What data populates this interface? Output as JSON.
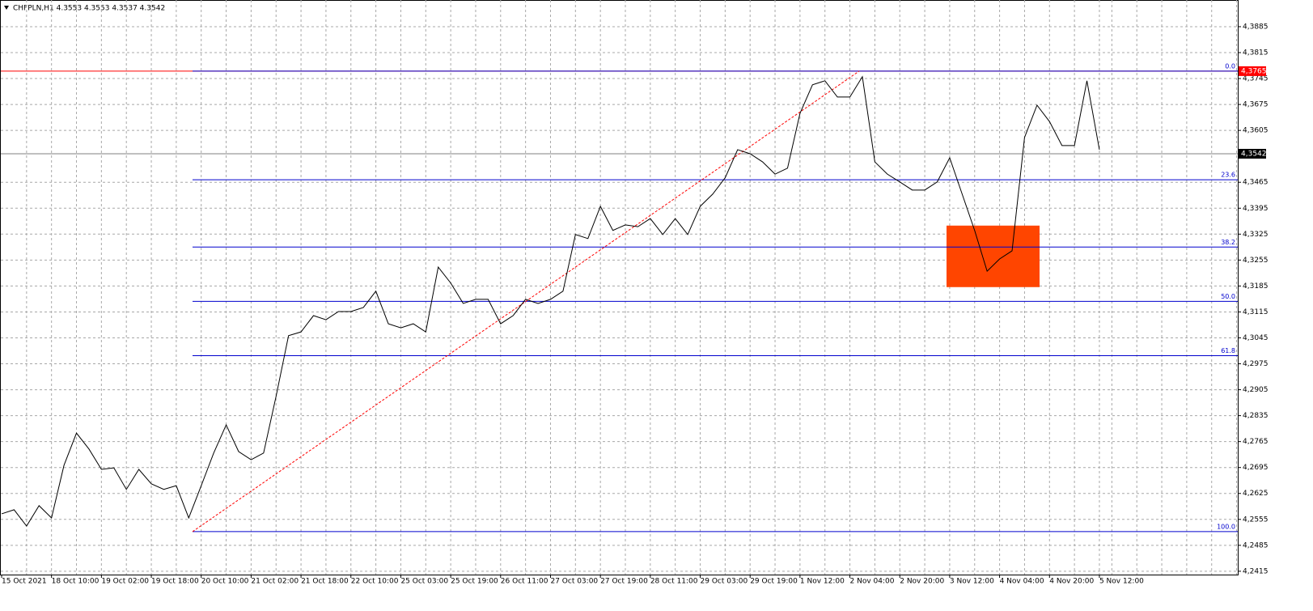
{
  "chart_data": {
    "type": "line",
    "title": "CHFPLN,H1  4.3553 4.3553 4.3537 4.3542",
    "categories": [
      "15 Oct 2021",
      null,
      null,
      null,
      "18 Oct 10:00",
      null,
      null,
      null,
      "19 Oct 02:00",
      null,
      null,
      null,
      "19 Oct 18:00",
      null,
      null,
      null,
      "20 Oct 10:00",
      null,
      null,
      null,
      "21 Oct 02:00",
      null,
      null,
      null,
      "21 Oct 18:00",
      null,
      null,
      null,
      "22 Oct 10:00",
      null,
      null,
      null,
      "25 Oct 03:00",
      null,
      null,
      null,
      "25 Oct 19:00",
      null,
      null,
      null,
      "26 Oct 11:00",
      null,
      null,
      null,
      "27 Oct 03:00",
      null,
      null,
      null,
      "27 Oct 19:00",
      null,
      null,
      null,
      "28 Oct 11:00",
      null,
      null,
      null,
      "29 Oct 03:00",
      null,
      null,
      null,
      "29 Oct 19:00",
      null,
      null,
      null,
      "1 Nov 12:00",
      null,
      null,
      null,
      "2 Nov 04:00",
      null,
      null,
      null,
      "2 Nov 20:00",
      null,
      null,
      null,
      "3 Nov 12:00",
      null,
      null,
      null,
      "4 Nov 04:00",
      null,
      null,
      null,
      "4 Nov 20:00",
      null,
      null,
      null,
      "5 Nov 12:00"
    ],
    "series": [
      {
        "color": "#000000",
        "values": [
          4.257,
          4.2581,
          4.2537,
          4.2592,
          4.2559,
          4.2701,
          4.2788,
          4.2745,
          4.269,
          4.2694,
          4.2636,
          4.269,
          4.2651,
          4.2636,
          4.2646,
          4.2559,
          4.2646,
          4.2734,
          4.281,
          4.2738,
          4.2716,
          4.2734,
          4.2887,
          4.3051,
          4.3061,
          4.3105,
          4.3094,
          4.3116,
          4.3116,
          4.3127,
          4.3171,
          4.3083,
          4.3072,
          4.3083,
          4.3061,
          4.3236,
          4.3193,
          4.3138,
          4.3149,
          4.3149,
          4.3083,
          4.3105,
          4.3149,
          4.3138,
          4.3149,
          4.3171,
          4.3324,
          4.3313,
          4.34,
          4.3335,
          4.335,
          4.3345,
          4.3367,
          4.3324,
          4.3367,
          4.3324,
          4.34,
          4.3433,
          4.3477,
          4.3553,
          4.3542,
          4.352,
          4.3487,
          4.3503,
          4.3651,
          4.3728,
          4.3739,
          4.3695,
          4.3695,
          4.375,
          4.352,
          4.3487,
          4.3466,
          4.3444,
          4.3444,
          4.3466,
          4.3531,
          4.3433,
          4.3335,
          4.3225,
          4.3258,
          4.328,
          4.3586,
          4.3673,
          4.3629,
          4.3564,
          4.3564,
          4.3739,
          4.3553
        ]
      }
    ],
    "ylim": [
      4.2406,
      4.3957
    ],
    "yticks": [
      {
        "value": 4.2415,
        "label": "4,2415"
      },
      {
        "value": 4.2485,
        "label": "4,2485"
      },
      {
        "value": 4.2555,
        "label": "4,2555"
      },
      {
        "value": 4.2625,
        "label": "4,2625"
      },
      {
        "value": 4.2695,
        "label": "4,2695"
      },
      {
        "value": 4.2765,
        "label": "4,2765"
      },
      {
        "value": 4.2835,
        "label": "4,2835"
      },
      {
        "value": 4.2905,
        "label": "4,2905"
      },
      {
        "value": 4.2975,
        "label": "4,2975"
      },
      {
        "value": 4.3045,
        "label": "4,3045"
      },
      {
        "value": 4.3115,
        "label": "4,3115"
      },
      {
        "value": 4.3185,
        "label": "4,3185"
      },
      {
        "value": 4.3255,
        "label": "4,3255"
      },
      {
        "value": 4.3325,
        "label": "4,3325"
      },
      {
        "value": 4.3395,
        "label": "4,3395"
      },
      {
        "value": 4.3465,
        "label": "4,3465"
      },
      {
        "value": 4.3605,
        "label": "4,3605"
      },
      {
        "value": 4.3675,
        "label": "4,3675"
      },
      {
        "value": 4.3745,
        "label": "4,3745"
      },
      {
        "value": 4.3815,
        "label": "4,3815"
      },
      {
        "value": 4.3885,
        "label": "4,3885"
      }
    ],
    "grid": true,
    "price_lines": [
      {
        "value": 4.3765,
        "label": "4,3765",
        "color": "#ff0000"
      },
      {
        "value": 4.3542,
        "label": "4,3542",
        "color": "#000000"
      }
    ],
    "fibonacci": {
      "high": 4.3765,
      "low": 4.2522,
      "color": "#0000cd",
      "levels": [
        {
          "value": 0,
          "label": "0.0"
        },
        23.6,
        38.2,
        {
          "value": 50,
          "label": "50.0"
        },
        61.8,
        {
          "value": 100,
          "label": "100.0"
        }
      ]
    },
    "rectangle": {
      "color": "#ff4500",
      "ylim": [
        4.3182,
        4.3348
      ]
    }
  }
}
